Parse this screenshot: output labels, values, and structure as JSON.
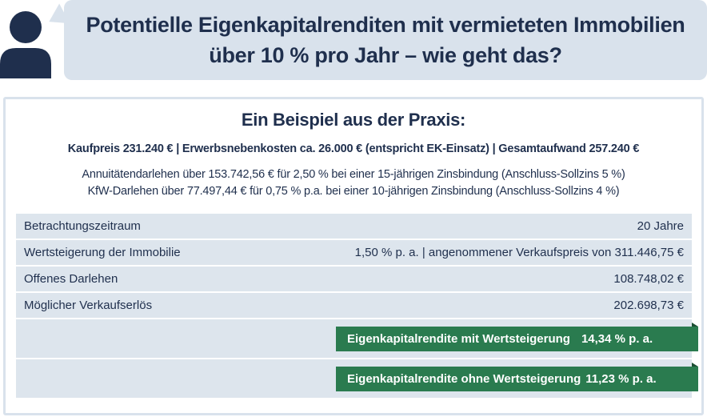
{
  "header": {
    "title_line1": "Potentielle Eigenkapitalrenditen mit vermieteten Immobilien",
    "title_line2": "über 10 % pro Jahr – wie geht das?"
  },
  "example": {
    "heading": "Ein Beispiel aus der Praxis:",
    "summary": "Kaufpreis 231.240 € | Erwerbsnebenkosten ca. 26.000 € (entspricht EK-Einsatz) | Gesamtaufwand 257.240 €",
    "loan1": "Annuitätendarlehen über 153.742,56 € für 2,50 % bei einer 15-jährigen Zinsbindung (Anschluss-Sollzins 5 %)",
    "loan2": "KfW-Darlehen über 77.497,44 € für 0,75 % p.a. bei einer 10-jährigen Zinsbindung (Anschluss-Sollzins 4 %)"
  },
  "table": {
    "rows": [
      {
        "label": "Betrachtungszeitraum",
        "value": "20 Jahre"
      },
      {
        "label": "Wertsteigerung der Immobilie",
        "value": "1,50 % p. a. | angenommener Verkaufspreis von 311.446,75 €"
      },
      {
        "label": "Offenes Darlehen",
        "value": "108.748,02 €"
      },
      {
        "label": "Möglicher Verkaufserlös",
        "value": "202.698,73 €"
      }
    ],
    "results": [
      {
        "label": "Eigenkapitalrendite mit Wertsteigerung",
        "value": "14,34 % p. a."
      },
      {
        "label": "Eigenkapitalrendite ohne Wertsteigerung",
        "value": "11,23 % p. a."
      }
    ]
  },
  "colors": {
    "navy": "#1f2f4d",
    "bubble": "#d9e2ec",
    "row": "#dde5ed",
    "green": "#2a7b4f"
  },
  "icons": {
    "avatar": "person-icon"
  }
}
